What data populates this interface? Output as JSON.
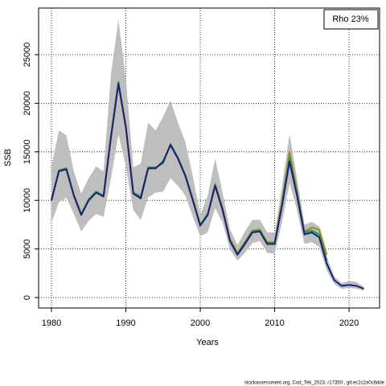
{
  "chart_data": {
    "type": "line",
    "xlabel": "Years",
    "ylabel": "SSB",
    "annotation": "Rho 23%",
    "footer": "stockassessment.org, Cod_Tek_2023, r17350 , git:ec2c2a0c6dde",
    "x": [
      1980,
      1981,
      1982,
      1983,
      1984,
      1985,
      1986,
      1987,
      1988,
      1989,
      1990,
      1991,
      1992,
      1993,
      1994,
      1995,
      1996,
      1997,
      1998,
      1999,
      2000,
      2001,
      2002,
      2003,
      2004,
      2005,
      2006,
      2007,
      2008,
      2009,
      2010,
      2011,
      2012,
      2013,
      2014,
      2015,
      2016,
      2017,
      2018,
      2019,
      2020,
      2021,
      2022
    ],
    "band": {
      "color": "#bebebe",
      "upper": [
        13500,
        17200,
        16700,
        13000,
        10700,
        12300,
        13500,
        13000,
        23000,
        28600,
        22500,
        13400,
        13800,
        18000,
        17200,
        18600,
        20300,
        18000,
        16000,
        12500,
        8500,
        10500,
        14300,
        10800,
        7000,
        5400,
        6800,
        8000,
        8000,
        6700,
        6700,
        11500,
        16800,
        12300,
        7500,
        7800,
        7300,
        4200,
        2200,
        1500,
        1700,
        1600,
        1100
      ],
      "lower": [
        7700,
        9800,
        10300,
        8600,
        6800,
        7900,
        8600,
        8300,
        12300,
        16800,
        13500,
        9000,
        8000,
        10300,
        10800,
        10900,
        12300,
        11500,
        10500,
        8300,
        6300,
        6700,
        9200,
        7700,
        4900,
        3800,
        4600,
        5600,
        5800,
        4600,
        4500,
        7800,
        11800,
        9000,
        5500,
        5700,
        5200,
        2800,
        1400,
        900,
        1000,
        900,
        700
      ]
    },
    "series": [
      {
        "color": "#87ceeb",
        "values": [
          10000,
          12950,
          13150,
          10450,
          8450,
          9950,
          10750,
          10350,
          16400,
          21800,
          17400,
          10650,
          10150,
          13250,
          13250,
          14100,
          15650,
          14250,
          12450,
          9950,
          7350,
          8450,
          11450,
          8950,
          5750,
          4350,
          5450,
          6650,
          6750,
          5450,
          5450,
          9400,
          13800,
          10400,
          6400,
          6600,
          6100,
          3300,
          1700,
          1100,
          1200,
          null,
          null
        ]
      },
      {
        "color": "#a08a2a",
        "values": [
          10050,
          13050,
          13250,
          10550,
          8550,
          10050,
          10850,
          10450,
          16600,
          22100,
          17550,
          10750,
          10300,
          13350,
          13350,
          13900,
          15750,
          14350,
          12550,
          10050,
          7450,
          8550,
          11700,
          9200,
          6000,
          4600,
          5700,
          6900,
          7000,
          5700,
          5700,
          9900,
          15000,
          11000,
          6800,
          7200,
          7000,
          4400,
          null,
          null,
          null,
          null,
          null
        ]
      },
      {
        "color": "#1b9e3e",
        "values": [
          10100,
          13100,
          13300,
          10600,
          8600,
          10100,
          10900,
          10500,
          16700,
          22200,
          17600,
          10800,
          10400,
          13400,
          13400,
          13800,
          15800,
          14400,
          12600,
          10100,
          7500,
          8600,
          11600,
          9100,
          5900,
          4500,
          5600,
          6800,
          6900,
          5600,
          5600,
          9700,
          14400,
          10800,
          6700,
          6900,
          6500,
          3800,
          null,
          null,
          null,
          null,
          null
        ]
      },
      {
        "color": "#2a1a6e",
        "values": [
          10000,
          13000,
          13200,
          10500,
          8500,
          10000,
          10800,
          10400,
          16500,
          22000,
          17500,
          10700,
          10200,
          13300,
          13300,
          14000,
          15700,
          14300,
          12500,
          10000,
          7400,
          8500,
          11500,
          9000,
          5800,
          4400,
          5500,
          6700,
          6800,
          5500,
          5500,
          9500,
          14000,
          10500,
          6500,
          6700,
          6200,
          3500,
          1800,
          1200,
          1300,
          1200,
          900
        ]
      }
    ],
    "xlim": [
      1978.27,
      2024.1
    ],
    "ylim": [
      -1076,
      29800
    ],
    "xticks": [
      1980,
      1990,
      2000,
      2010,
      2020
    ],
    "yticks": [
      0,
      5000,
      10000,
      15000,
      20000,
      25000
    ],
    "grid": true
  }
}
